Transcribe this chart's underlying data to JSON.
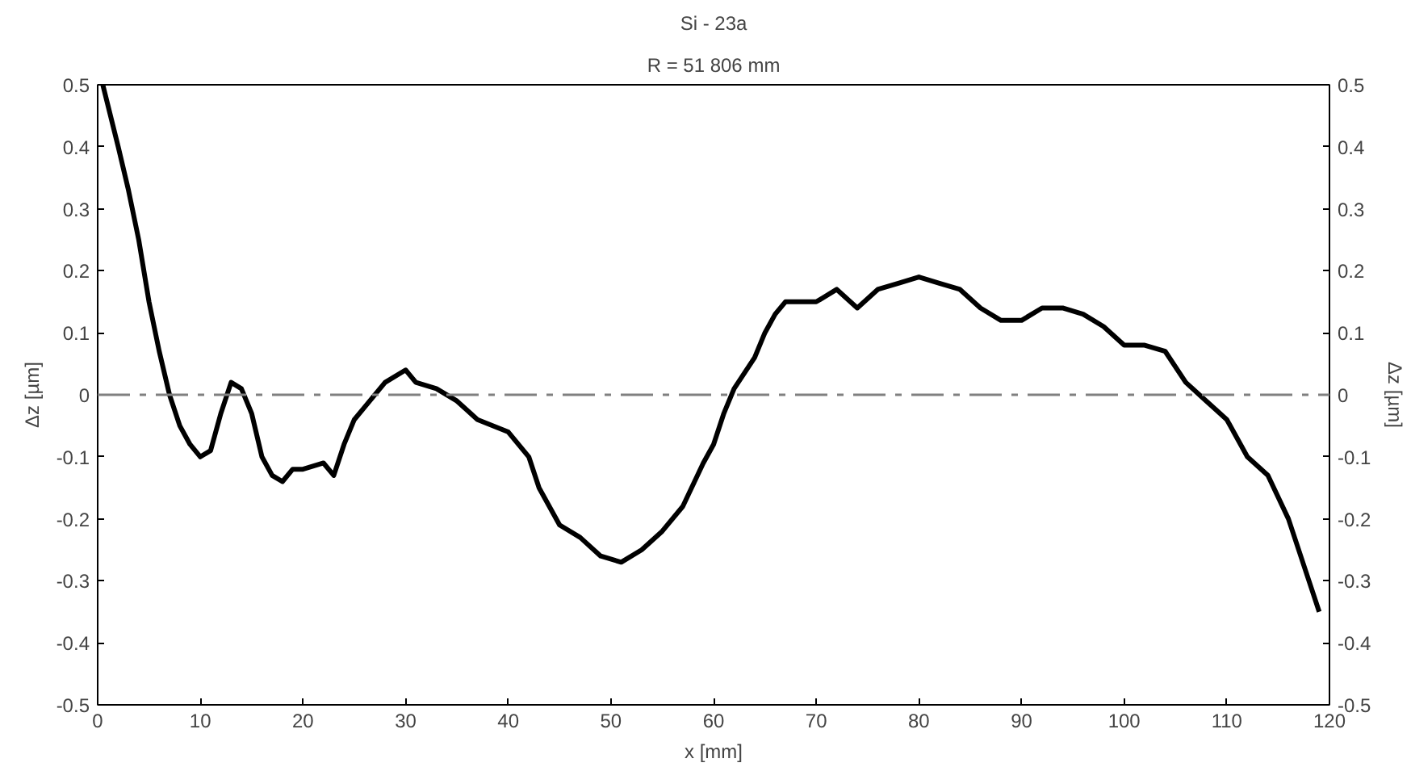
{
  "chart_data": {
    "type": "line",
    "title": "Si - 23a",
    "subtitle": "R = 51 806 mm",
    "xlabel": "x [mm]",
    "ylabel": "Δz [µm]",
    "y2label": "Δz [µm]",
    "x": [
      0.5,
      2,
      3,
      4,
      5,
      6,
      7,
      8,
      9,
      10,
      11,
      12,
      13,
      14,
      15,
      16,
      17,
      18,
      19,
      20,
      22,
      23,
      24,
      25,
      26,
      28,
      30,
      31,
      33,
      35,
      37,
      40,
      42,
      43,
      45,
      47,
      49,
      51,
      53,
      55,
      57,
      59,
      60,
      61,
      62,
      64,
      65,
      66,
      67,
      70,
      72,
      74,
      76,
      78,
      80,
      82,
      84,
      86,
      88,
      90,
      92,
      94,
      96,
      98,
      100,
      102,
      104,
      106,
      108,
      110,
      112,
      114,
      116,
      118,
      119
    ],
    "series": [
      {
        "color": "#000000",
        "values": [
          0.5,
          0.4,
          0.33,
          0.25,
          0.15,
          0.07,
          0.0,
          -0.05,
          -0.08,
          -0.1,
          -0.09,
          -0.03,
          0.02,
          0.01,
          -0.03,
          -0.1,
          -0.13,
          -0.14,
          -0.12,
          -0.12,
          -0.11,
          -0.13,
          -0.08,
          -0.04,
          -0.02,
          0.02,
          0.04,
          0.02,
          0.01,
          -0.01,
          -0.04,
          -0.06,
          -0.1,
          -0.15,
          -0.21,
          -0.23,
          -0.26,
          -0.27,
          -0.25,
          -0.22,
          -0.18,
          -0.11,
          -0.08,
          -0.03,
          0.01,
          0.06,
          0.1,
          0.13,
          0.15,
          0.15,
          0.17,
          0.14,
          0.17,
          0.18,
          0.19,
          0.18,
          0.17,
          0.14,
          0.12,
          0.12,
          0.14,
          0.14,
          0.13,
          0.11,
          0.08,
          0.08,
          0.07,
          0.02,
          -0.01,
          -0.04,
          -0.1,
          -0.13,
          -0.2,
          -0.3,
          -0.35
        ]
      }
    ],
    "xlim": [
      0,
      120
    ],
    "xticks": [
      0,
      10,
      20,
      30,
      40,
      50,
      60,
      70,
      80,
      90,
      100,
      110,
      120
    ],
    "ylim": [
      -0.5,
      0.5
    ],
    "yticks": [
      -0.5,
      -0.4,
      -0.3,
      -0.2,
      -0.1,
      0,
      0.1,
      0.2,
      0.3,
      0.4,
      0.5
    ],
    "y2lim": [
      -0.5,
      0.5
    ],
    "y2ticks": [
      -0.5,
      -0.4,
      -0.3,
      -0.2,
      -0.1,
      0,
      0.1,
      0.2,
      0.3,
      0.4,
      0.5
    ],
    "ref_lines": [
      {
        "axis": "y",
        "value": 0,
        "color": "#808080",
        "line_style": "dashdot"
      }
    ],
    "grid": false,
    "marker": "none",
    "line_style": "solid"
  }
}
